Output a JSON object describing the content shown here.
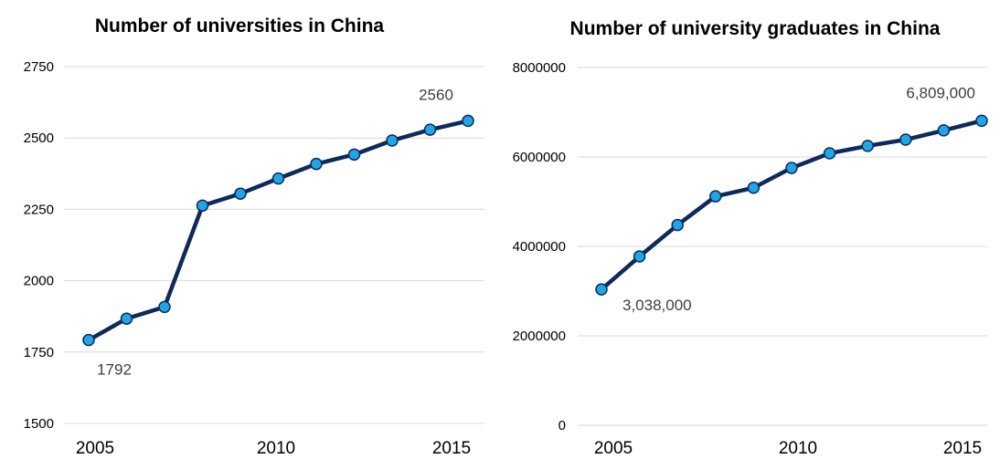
{
  "chart_data": [
    {
      "type": "line",
      "title": "Number of universities in China",
      "xlabel": "",
      "ylabel": "",
      "x": [
        2005,
        2006,
        2007,
        2008,
        2009,
        2010,
        2011,
        2012,
        2013,
        2014,
        2015
      ],
      "x_tick_labels": [
        "2005",
        "2010",
        "2015"
      ],
      "y_tick_labels": [
        "1500",
        "1750",
        "2000",
        "2250",
        "2500",
        "2750"
      ],
      "ylim": [
        1500,
        2750
      ],
      "series": [
        {
          "values": [
            1792,
            1867,
            1908,
            2263,
            2305,
            2358,
            2409,
            2442,
            2491,
            2529,
            2560
          ]
        }
      ],
      "data_labels": [
        {
          "index": 0,
          "text": "1792",
          "position": "below"
        },
        {
          "index": 10,
          "text": "2560",
          "position": "above"
        }
      ],
      "grid": "horizontal",
      "legend": "none",
      "line_color": "#0d2a5c",
      "marker_color": "#1ea7e8"
    },
    {
      "type": "line",
      "title": "Number of university graduates in China",
      "xlabel": "",
      "ylabel": "",
      "x": [
        2005,
        2006,
        2007,
        2008,
        2009,
        2010,
        2011,
        2012,
        2013,
        2014,
        2015
      ],
      "x_tick_labels": [
        "2005",
        "2010",
        "2015"
      ],
      "y_tick_labels": [
        "0",
        "2000000",
        "4000000",
        "6000000",
        "8000000"
      ],
      "ylim": [
        0,
        8000000
      ],
      "series": [
        {
          "values": [
            3038000,
            3775000,
            4478000,
            5119000,
            5311000,
            5754000,
            6082000,
            6247000,
            6387000,
            6594000,
            6809000
          ]
        }
      ],
      "data_labels": [
        {
          "index": 0,
          "text": "3,038,000",
          "position": "below-right"
        },
        {
          "index": 10,
          "text": "6,809,000",
          "position": "above-left"
        }
      ],
      "grid": "horizontal",
      "legend": "none",
      "line_color": "#0d2a5c",
      "marker_color": "#1ea7e8"
    }
  ]
}
